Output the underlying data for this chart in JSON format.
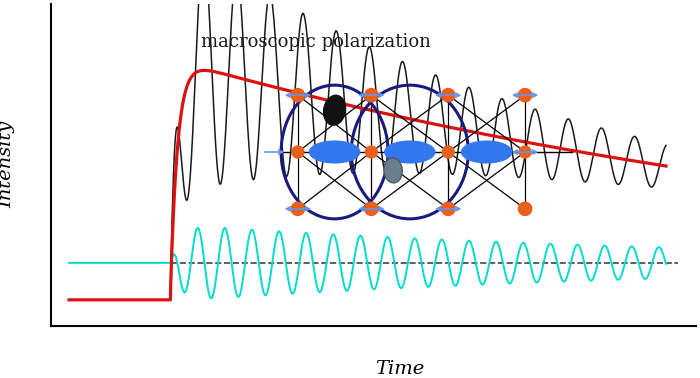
{
  "title": "macroscopic polarization",
  "xlabel": "Time",
  "ylabel": "Intensity",
  "bg_color": "#ffffff",
  "black_line_color": "#1a1a1a",
  "red_line_color": "#dd1111",
  "cyan_line_color": "#00ddcc",
  "dashed_line_color": "#222222",
  "annotation_fontsize": 13,
  "axis_label_fontsize": 14,
  "orange": "#e8601c",
  "blue_node": "#3377ee",
  "dark_navy": "#1a1a7e",
  "black_node": "#111111",
  "gray_node": "#6a7f8e"
}
